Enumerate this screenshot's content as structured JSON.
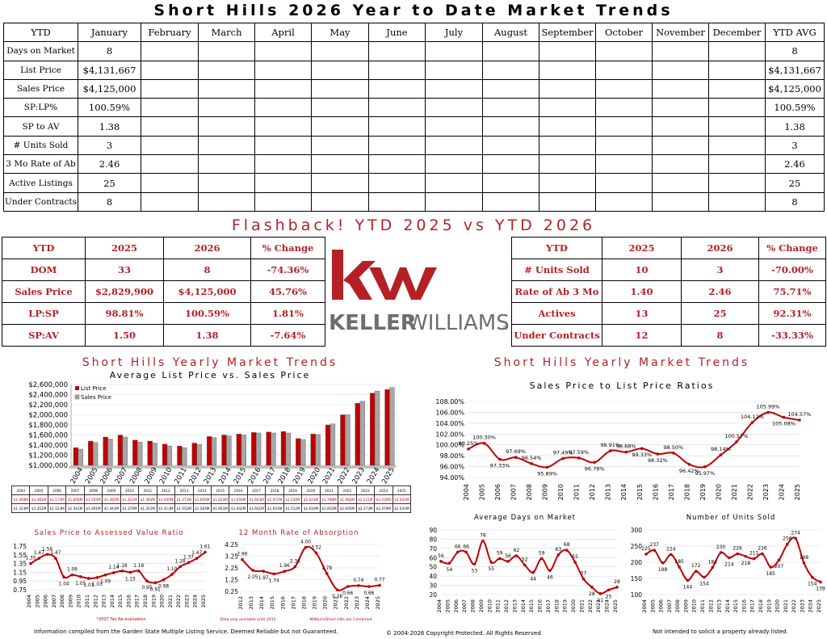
{
  "title": "Short Hills 2026 Year to Date Market Trends",
  "ytd_table": {
    "headers": [
      "YTD",
      "January",
      "February",
      "March",
      "April",
      "May",
      "June",
      "July",
      "August",
      "September",
      "October",
      "November",
      "December",
      "YTD AVG"
    ],
    "rows": [
      {
        "label": "Days on Market",
        "january": "8",
        "avg": "8"
      },
      {
        "label": "List Price",
        "january": "$4,131,667",
        "avg": "$4,131,667"
      },
      {
        "label": "Sales Price",
        "january": "$4,125,000",
        "avg": "$4,125,000"
      },
      {
        "label": "SP:LP%",
        "january": "100.59%",
        "avg": "100.59%"
      },
      {
        "label": "SP to AV",
        "january": "1.38",
        "avg": "1.38"
      },
      {
        "label": "# Units Sold",
        "january": "3",
        "avg": "3"
      },
      {
        "label": "3 Mo Rate of Ab",
        "january": "2.46",
        "avg": "2.46"
      },
      {
        "label": "Active Listings",
        "january": "25",
        "avg": "25"
      },
      {
        "label": "Under Contracts",
        "january": "8",
        "avg": "8"
      }
    ]
  },
  "flashback_title": "Flashback!  YTD 2025 vs YTD 2026",
  "compare_left": {
    "headers": [
      "YTD",
      "2025",
      "2026",
      "% Change"
    ],
    "rows": [
      [
        "DOM",
        "33",
        "8",
        "-74.36%"
      ],
      [
        "Sales Price",
        "$2,829,900",
        "$4,125,000",
        "45.76%"
      ],
      [
        "LP:SP",
        "98.81%",
        "100.59%",
        "1.81%"
      ],
      [
        "SP:AV",
        "1.50",
        "1.38",
        "-7.64%"
      ]
    ]
  },
  "compare_right": {
    "headers": [
      "YTD",
      "2025",
      "2026",
      "% Change"
    ],
    "rows": [
      [
        "# Units Sold",
        "10",
        "3",
        "-70.00%"
      ],
      [
        "Rate of Ab 3 Mo",
        "1.40",
        "2.46",
        "75.71%"
      ],
      [
        "Actives",
        "13",
        "25",
        "92.31%"
      ],
      [
        "Under Contracts",
        "12",
        "8",
        "-33.33%"
      ]
    ]
  },
  "logo": {
    "mark": "kw",
    "wordmark_bold": "KELLER",
    "wordmark_light": "WILLIAMS",
    "registered": "®",
    "color": "#b52025"
  },
  "section_left_title": "Short Hills Yearly Market Trends",
  "section_right_title": "Short Hills Yearly Market Trends",
  "years": [
    "2004",
    "2005",
    "2006",
    "2007",
    "2008",
    "2009",
    "2010",
    "2011",
    "2012",
    "2013",
    "2014",
    "2015",
    "2016",
    "2017",
    "2018",
    "2019",
    "2020",
    "2021",
    "2022",
    "2023",
    "2024",
    "2025"
  ],
  "chart_data": [
    {
      "type": "bar",
      "title": "Average List Price vs. Sales Price",
      "categories": [
        "2004",
        "2005",
        "2006",
        "2007",
        "2008",
        "2009",
        "2010",
        "2011",
        "2012",
        "2013",
        "2014",
        "2015",
        "2016",
        "2017",
        "2018",
        "2019",
        "2020",
        "2021",
        "2022",
        "2023",
        "2024",
        "2025"
      ],
      "series": [
        {
          "name": "List Price",
          "color": "#c00000",
          "values": [
            1350000,
            1480000,
            1560000,
            1600000,
            1500000,
            1480000,
            1420000,
            1380000,
            1440000,
            1570000,
            1600000,
            1620000,
            1650000,
            1660000,
            1670000,
            1530000,
            1620000,
            1800000,
            2000000,
            2230000,
            2430000,
            2500000
          ]
        },
        {
          "name": "Sales Price",
          "color": "#a6a6a6",
          "values": [
            1320000,
            1450000,
            1520000,
            1560000,
            1460000,
            1440000,
            1380000,
            1350000,
            1410000,
            1550000,
            1580000,
            1600000,
            1640000,
            1640000,
            1640000,
            1510000,
            1610000,
            1820000,
            2000000,
            2270000,
            2470000,
            2540000
          ]
        }
      ],
      "yticks": [
        "$1,000,000",
        "$1,200,000",
        "$1,400,000",
        "$1,600,000",
        "$1,800,000",
        "$2,000,000",
        "$2,200,000",
        "$2,400,000",
        "$2,600,000"
      ],
      "ylim": [
        1000000,
        2600000
      ]
    },
    {
      "type": "line",
      "title": "Sales Price to List Price Ratios",
      "categories": [
        "2004",
        "2005",
        "2006",
        "2007",
        "2008",
        "2009",
        "2010",
        "2011",
        "2012",
        "2013",
        "2014",
        "2015",
        "2016",
        "2017",
        "2018",
        "2019",
        "2020",
        "2021",
        "2022",
        "2023",
        "2024",
        "2025"
      ],
      "values": [
        99.25,
        100.3,
        97.33,
        97.69,
        96.54,
        95.89,
        97.49,
        97.59,
        96.78,
        98.91,
        98.68,
        99.33,
        98.32,
        98.5,
        96.42,
        95.97,
        98.14,
        100.57,
        104.12,
        105.99,
        105.08,
        104.57
      ],
      "labels": [
        "99.25%",
        "100.30%",
        "97.33%",
        "97.69%",
        "96.54%",
        "95.89%",
        "97.49%",
        "97.59%",
        "96.78%",
        "98.91%",
        "98.68%",
        "99.33%",
        "98.32%",
        "98.50%",
        "96.42%",
        "95.97%",
        "98.14%",
        "100.57%",
        "104.12%",
        "105.99%",
        "105.08%",
        "104.57%"
      ],
      "yticks": [
        "94.00%",
        "96.00%",
        "98.00%",
        "100.00%",
        "102.00%",
        "104.00%",
        "106.00%",
        "108.00%"
      ],
      "ylim": [
        94,
        108
      ]
    },
    {
      "type": "line",
      "title": "Sales Price to Assessed Value Ratio",
      "categories": [
        "2004",
        "2005",
        "2006",
        "2007",
        "2008",
        "2009",
        "2010",
        "2011",
        "2012",
        "2013",
        "2014",
        "2015",
        "2016",
        "2017",
        "2018",
        "2019",
        "2020",
        "2021",
        "2022",
        "2023",
        "2024",
        "2025"
      ],
      "values": [
        1.35,
        1.47,
        1.56,
        1.47,
        1.04,
        1.09,
        1.05,
        1.01,
        1.03,
        1.09,
        1.14,
        1.18,
        1.15,
        1.18,
        0.95,
        0.91,
        0.98,
        1.1,
        1.28,
        1.37,
        1.47,
        1.61
      ],
      "labels": [
        "1.35",
        "1.47",
        "1.56",
        "1.47",
        "1.04",
        "1.09",
        "1.05",
        "1.01",
        "1.03",
        "1.09",
        "1.14",
        "1.18",
        "1.15",
        "1.18",
        "0.95",
        "0.91",
        "0.98",
        "1.10",
        "1.28",
        "1.37",
        "1.47",
        "1.61"
      ],
      "yticks": [
        "0.75",
        "0.95",
        "1.15",
        "1.35",
        "1.55",
        "1.75"
      ],
      "ylim": [
        0.75,
        1.75
      ],
      "note": "*2007 Tax Re-evaluation"
    },
    {
      "type": "line",
      "title": "12 Month Rate of Absorption",
      "categories": [
        "2012",
        "2013",
        "2014",
        "2015",
        "2016",
        "2017",
        "2018",
        "2019",
        "2020",
        "2021",
        "2022",
        "2023",
        "2024",
        "2025"
      ],
      "values": [
        2.96,
        2.05,
        1.97,
        1.74,
        1.96,
        2.36,
        4.0,
        3.52,
        1.78,
        0.38,
        0.66,
        0.74,
        0.66,
        0.77
      ],
      "labels": [
        "2.96",
        "2.05",
        "1.97",
        "1.74",
        "1.96",
        "2.36",
        "4.00",
        "3.52",
        "1.78",
        "0.38",
        "0.66",
        "0.74",
        "0.66",
        "0.77"
      ],
      "yticks": [
        "0.25",
        "1.25",
        "2.25",
        "3.25",
        "4.25"
      ],
      "ylim": [
        0.25,
        4.25
      ],
      "note_left": "Data only available until 2012",
      "note_right": "Millburn/Short Hills are Combined"
    },
    {
      "type": "line",
      "title": "Average Days on Market",
      "categories": [
        "2004",
        "2005",
        "2006",
        "2007",
        "2008",
        "2009",
        "2010",
        "2011",
        "2012",
        "2013",
        "2014",
        "2015",
        "2016",
        "2017",
        "2018",
        "2019",
        "2020",
        "2021",
        "2022",
        "2023",
        "2024",
        "2025"
      ],
      "values": [
        56,
        54,
        66,
        66,
        53,
        78,
        55,
        59,
        56,
        62,
        52,
        44,
        59,
        46,
        63,
        68,
        55,
        37,
        28,
        21,
        25,
        28
      ],
      "labels": [
        "56",
        "54",
        "66",
        "66",
        "53",
        "78",
        "55",
        "59",
        "56",
        "62",
        "52",
        "44",
        "59",
        "46",
        "63",
        "68",
        "55",
        "37",
        "28",
        "21",
        "25",
        "28"
      ],
      "yticks": [
        "20",
        "30",
        "40",
        "50",
        "60",
        "70",
        "80",
        "90"
      ],
      "ylim": [
        20,
        90
      ]
    },
    {
      "type": "line",
      "title": "Number of Units Sold",
      "categories": [
        "2004",
        "2005",
        "2006",
        "2007",
        "2008",
        "2009",
        "2010",
        "2011",
        "2012",
        "2013",
        "2014",
        "2015",
        "2016",
        "2017",
        "2018",
        "2019",
        "2020",
        "2021",
        "2022",
        "2023",
        "2024",
        "2025"
      ],
      "values": [
        225,
        237,
        198,
        224,
        185,
        144,
        172,
        154,
        184,
        230,
        214,
        226,
        218,
        211,
        226,
        185,
        207,
        256,
        274,
        198,
        154,
        139
      ],
      "labels": [
        "225",
        "237",
        "198",
        "224",
        "185",
        "144",
        "172",
        "154",
        "184",
        "230",
        "214",
        "226",
        "218",
        "211",
        "226",
        "185",
        "207",
        "256",
        "274",
        "198",
        "154",
        "139"
      ],
      "yticks": [
        "100",
        "150",
        "200",
        "250",
        "300"
      ],
      "ylim": [
        100,
        300
      ]
    }
  ],
  "mini_table": {
    "years": [
      "2004",
      "2005",
      "2006",
      "2007",
      "2008",
      "2009",
      "2010",
      "2011",
      "2012",
      "2013",
      "2014",
      "2015",
      "2016",
      "2017",
      "2018",
      "2019",
      "2020",
      "2021",
      "2022",
      "2023",
      "2024",
      "2025"
    ],
    "lp_label": "LP",
    "sp_label": "SP",
    "lp": [
      "$1.368M",
      "$1.481M",
      "$1.572M",
      "$1.608M",
      "$1.505M",
      "$1.485M",
      "$1.421M",
      "$1.383M",
      "$1.440M",
      "$1.573M",
      "$1.605M",
      "$1.624M",
      "$1.650M",
      "$1.663M",
      "$1.672M",
      "$1.530M",
      "$1.623M",
      "$1.798M",
      "$1.982M",
      "$2.231M",
      "$2.430M",
      "$2.501M"
    ],
    "sp": [
      "$1.323M",
      "$1.452M",
      "$1.523M",
      "$1.561M",
      "$1.461M",
      "$1.441M",
      "$1.379M",
      "$1.351M",
      "$1.413M",
      "$1.552M",
      "$1.583M",
      "$1.601M",
      "$1.642M",
      "$1.641M",
      "$1.643M",
      "$1.512M",
      "$1.610M",
      "$1.815M",
      "$2.005M",
      "$2.273M",
      "$2.470M",
      "$2.541M"
    ]
  },
  "footer": {
    "left": "Information compiled from the Garden State Multiple Listing Service.  Deemed Reliable but not Guaranteed.",
    "center": "© 2004-2026 Copyright Protected.  All Rights Reserved",
    "right": "Not intended to solicit a property already listed."
  },
  "colors": {
    "accent": "#b52025",
    "line": "#c00000",
    "bar_gray": "#a6a6a6"
  }
}
